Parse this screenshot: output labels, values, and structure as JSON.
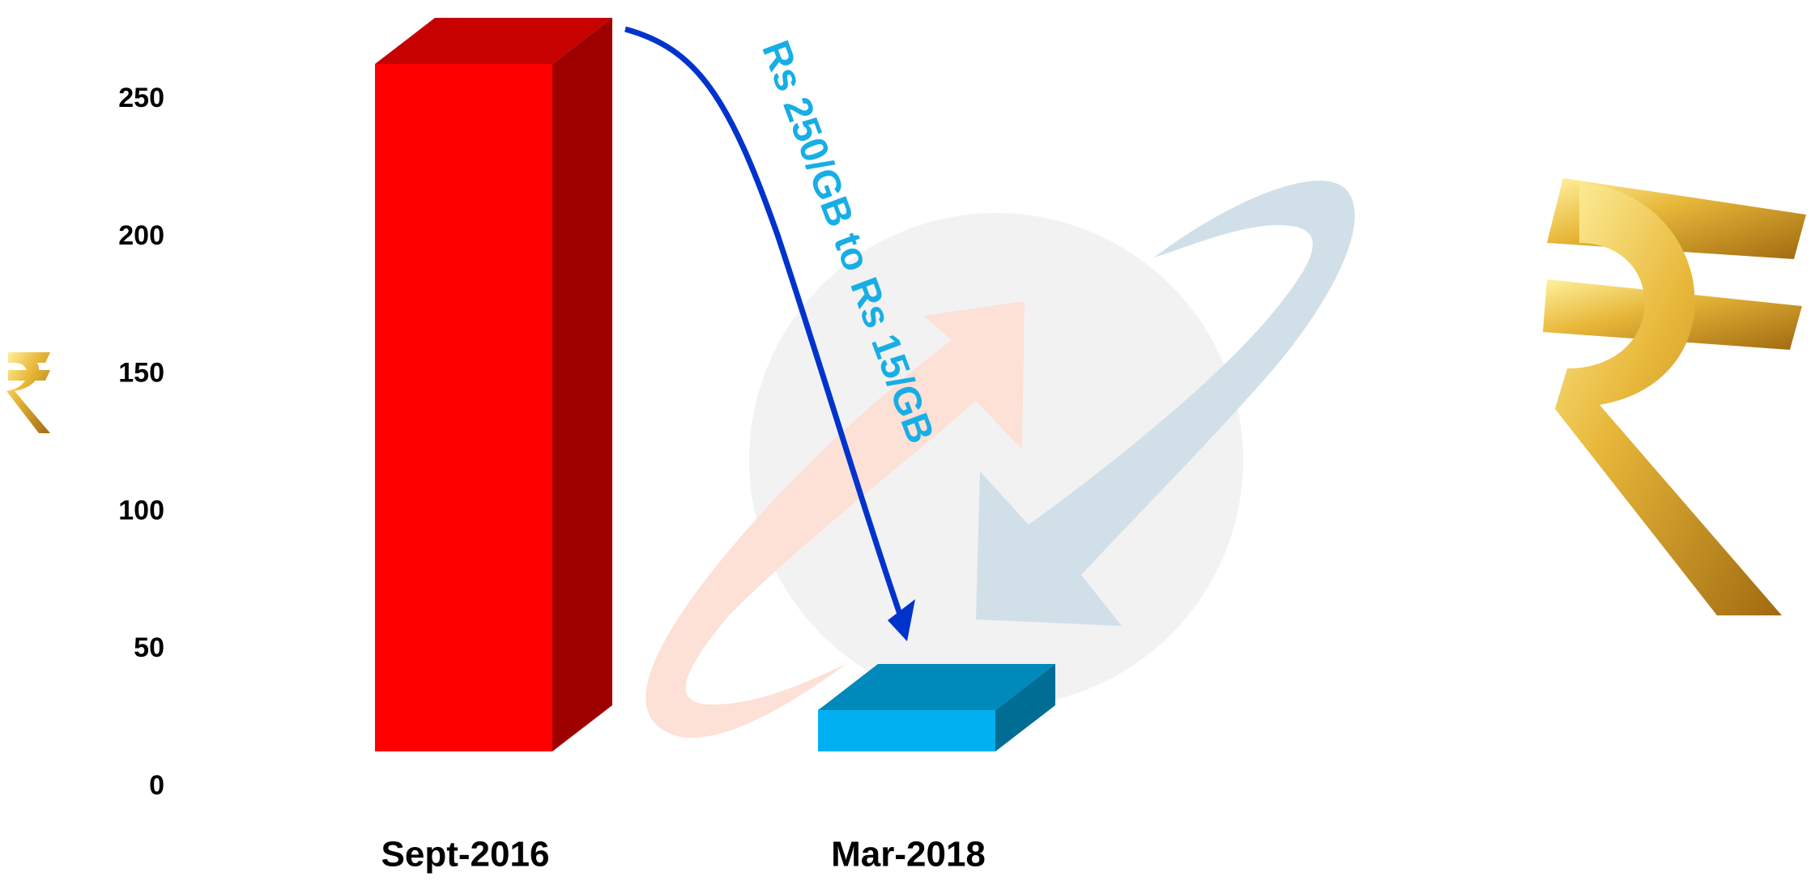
{
  "chart_data": {
    "type": "bar3d",
    "annotation": "Rs 250/GB to Rs 15/GB",
    "categories": [
      "Sept-2016",
      "Mar-2018"
    ],
    "values": [
      250,
      15
    ],
    "colors": [
      "#ff0000",
      "#00b0f0"
    ],
    "ylim": [
      0,
      250
    ],
    "yticks": [
      0,
      50,
      100,
      150,
      200,
      250
    ],
    "grid": false
  }
}
